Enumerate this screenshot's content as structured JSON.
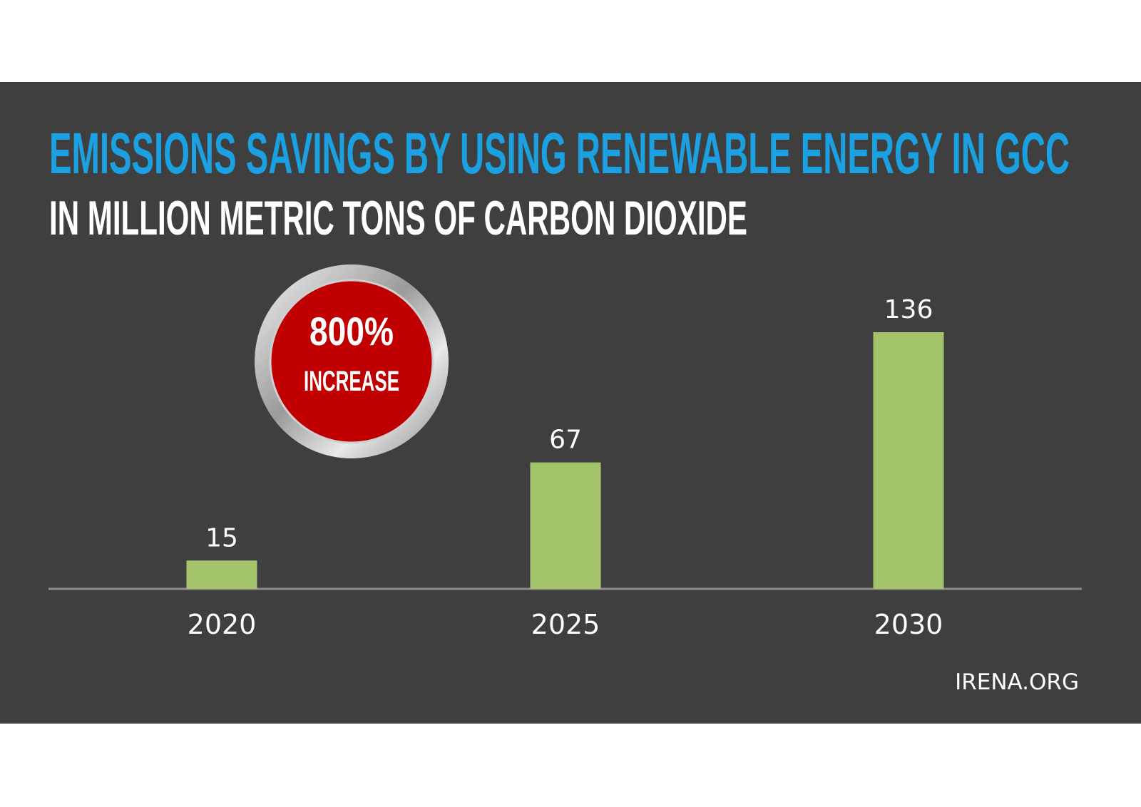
{
  "chart_data": {
    "type": "bar",
    "title": "EMISSIONS SAVINGS BY USING RENEWABLE ENERGY IN GCC",
    "subtitle": "IN MILLION METRIC TONS OF CARBON DIOXIDE",
    "categories": [
      "2020",
      "2025",
      "2030"
    ],
    "values": [
      15,
      67,
      136
    ],
    "color": "#a3c46a",
    "annotations": [
      "800%",
      "INCREASE"
    ],
    "source": "IRENA.ORG"
  }
}
